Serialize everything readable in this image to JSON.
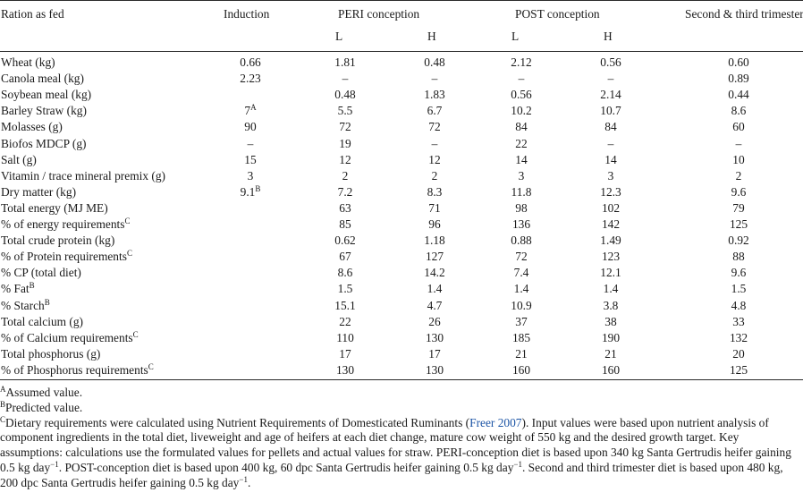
{
  "columns": {
    "ration": "Ration as fed",
    "induction": "Induction",
    "peri": "PERI conception",
    "post": "POST conception",
    "trimester": "Second & third trimester",
    "sub_l": "L",
    "sub_h": "H"
  },
  "rows": [
    {
      "label": "Wheat (kg)",
      "sup": "",
      "values": [
        "0.66",
        "1.81",
        "0.48",
        "2.12",
        "0.56",
        "0.60"
      ],
      "sups": [
        "",
        "",
        "",
        "",
        "",
        ""
      ]
    },
    {
      "label": "Canola meal (kg)",
      "sup": "",
      "values": [
        "2.23",
        "–",
        "–",
        "–",
        "–",
        "0.89"
      ],
      "sups": [
        "",
        "",
        "",
        "",
        "",
        ""
      ]
    },
    {
      "label": "Soybean meal (kg)",
      "sup": "",
      "values": [
        "",
        "0.48",
        "1.83",
        "0.56",
        "2.14",
        "0.44"
      ],
      "sups": [
        "",
        "",
        "",
        "",
        "",
        ""
      ]
    },
    {
      "label": "Barley Straw (kg)",
      "sup": "",
      "values": [
        "7",
        "5.5",
        "6.7",
        "10.2",
        "10.7",
        "8.6"
      ],
      "sups": [
        "A",
        "",
        "",
        "",
        "",
        ""
      ]
    },
    {
      "label": "Molasses (g)",
      "sup": "",
      "values": [
        "90",
        "72",
        "72",
        "84",
        "84",
        "60"
      ],
      "sups": [
        "",
        "",
        "",
        "",
        "",
        ""
      ]
    },
    {
      "label": "Biofos MDCP (g)",
      "sup": "",
      "values": [
        "–",
        "19",
        "–",
        "22",
        "–",
        "–"
      ],
      "sups": [
        "",
        "",
        "",
        "",
        "",
        ""
      ]
    },
    {
      "label": "Salt (g)",
      "sup": "",
      "values": [
        "15",
        "12",
        "12",
        "14",
        "14",
        "10"
      ],
      "sups": [
        "",
        "",
        "",
        "",
        "",
        ""
      ]
    },
    {
      "label": "Vitamin / trace mineral premix (g)",
      "sup": "",
      "values": [
        "3",
        "2",
        "2",
        "3",
        "3",
        "2"
      ],
      "sups": [
        "",
        "",
        "",
        "",
        "",
        ""
      ]
    },
    {
      "label": "Dry matter (kg)",
      "sup": "",
      "values": [
        "9.1",
        "7.2",
        "8.3",
        "11.8",
        "12.3",
        "9.6"
      ],
      "sups": [
        "B",
        "",
        "",
        "",
        "",
        ""
      ]
    },
    {
      "label": "Total energy (MJ ME)",
      "sup": "",
      "values": [
        "",
        "63",
        "71",
        "98",
        "102",
        "79"
      ],
      "sups": [
        "",
        "",
        "",
        "",
        "",
        ""
      ]
    },
    {
      "label": "% of energy requirements",
      "sup": "C",
      "values": [
        "",
        "85",
        "96",
        "136",
        "142",
        "125"
      ],
      "sups": [
        "",
        "",
        "",
        "",
        "",
        ""
      ]
    },
    {
      "label": "Total crude protein (kg)",
      "sup": "",
      "values": [
        "",
        "0.62",
        "1.18",
        "0.88",
        "1.49",
        "0.92"
      ],
      "sups": [
        "",
        "",
        "",
        "",
        "",
        ""
      ]
    },
    {
      "label": "% of Protein requirements",
      "sup": "C",
      "values": [
        "",
        "67",
        "127",
        "72",
        "123",
        "88"
      ],
      "sups": [
        "",
        "",
        "",
        "",
        "",
        ""
      ]
    },
    {
      "label": "% CP (total diet)",
      "sup": "",
      "values": [
        "",
        "8.6",
        "14.2",
        "7.4",
        "12.1",
        "9.6"
      ],
      "sups": [
        "",
        "",
        "",
        "",
        "",
        ""
      ]
    },
    {
      "label": "% Fat",
      "sup": "B",
      "values": [
        "",
        "1.5",
        "1.4",
        "1.4",
        "1.4",
        "1.5"
      ],
      "sups": [
        "",
        "",
        "",
        "",
        "",
        ""
      ]
    },
    {
      "label": "% Starch",
      "sup": "B",
      "values": [
        "",
        "15.1",
        "4.7",
        "10.9",
        "3.8",
        "4.8"
      ],
      "sups": [
        "",
        "",
        "",
        "",
        "",
        ""
      ]
    },
    {
      "label": "Total calcium (g)",
      "sup": "",
      "values": [
        "",
        "22",
        "26",
        "37",
        "38",
        "33"
      ],
      "sups": [
        "",
        "",
        "",
        "",
        "",
        ""
      ]
    },
    {
      "label": "% of Calcium requirements",
      "sup": "C",
      "values": [
        "",
        "110",
        "130",
        "185",
        "190",
        "132"
      ],
      "sups": [
        "",
        "",
        "",
        "",
        "",
        ""
      ]
    },
    {
      "label": "Total phosphorus (g)",
      "sup": "",
      "values": [
        "",
        "17",
        "17",
        "21",
        "21",
        "20"
      ],
      "sups": [
        "",
        "",
        "",
        "",
        "",
        ""
      ]
    },
    {
      "label": "% of Phosphorus requirements",
      "sup": "C",
      "values": [
        "",
        "130",
        "130",
        "160",
        "160",
        "125"
      ],
      "sups": [
        "",
        "",
        "",
        "",
        "",
        ""
      ]
    }
  ],
  "footnotes": {
    "a_mark": "A",
    "a_text": "Assumed value.",
    "b_mark": "B",
    "b_text": "Predicted value.",
    "c_mark": "C",
    "c_text_1": "Dietary requirements were calculated using Nutrient Requirements of Domesticated Ruminants (",
    "c_link": "Freer 2007",
    "c_text_2": "). Input values were based upon nutrient analysis of component ingredients in the total diet, liveweight and age of heifers at each diet change, mature cow weight of 550 kg and the desired growth target. Key assumptions: calculations use the formulated values for pellets and actual values for straw. PERI-conception diet is based upon 340 kg Santa Gertrudis heifer gaining 0.5 kg day",
    "c_text_3": ". POST-conception diet is based upon 400 kg, 60 dpc Santa Gertrudis heifer gaining 0.5 kg day",
    "c_text_4": ". Second and third trimester diet is based upon 480 kg, 200 dpc Santa Gertrudis heifer gaining 0.5 kg day",
    "c_text_5": ".",
    "exp": "−1"
  }
}
